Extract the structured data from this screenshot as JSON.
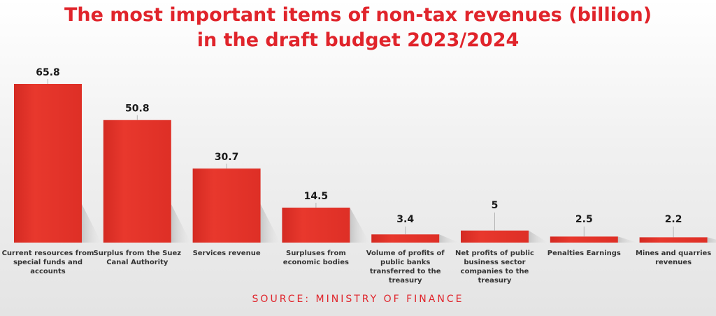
{
  "chart_data": {
    "type": "bar",
    "title_lines": [
      "The most important items of non-tax revenues (billion)",
      "in the draft budget 2023/2024"
    ],
    "categories": [
      [
        "Current resources from",
        "special funds and",
        "accounts"
      ],
      [
        "Surplus from the Suez",
        "Canal Authority"
      ],
      [
        "Services revenue"
      ],
      [
        "Surpluses from",
        "economic bodies"
      ],
      [
        "Volume of profits of",
        "public banks",
        "transferred to the",
        "treasury"
      ],
      [
        "Net profits of public",
        "business sector",
        "companies to the",
        "treasury"
      ],
      [
        "Penalties Earnings"
      ],
      [
        "Mines and quarries",
        "revenues"
      ]
    ],
    "value_labels": [
      "65.8",
      "50.8",
      "30.7",
      "14.5",
      "3.4",
      "5",
      "2.5",
      "2.2"
    ],
    "values": [
      65.8,
      50.8,
      30.7,
      14.5,
      3.4,
      5,
      2.5,
      2.2
    ],
    "ylim": [
      0,
      65.8
    ],
    "grid": false,
    "legend": "none",
    "bar_color": "#e5342b"
  },
  "source": "SOURCE: MINISTRY OF FINANCE"
}
